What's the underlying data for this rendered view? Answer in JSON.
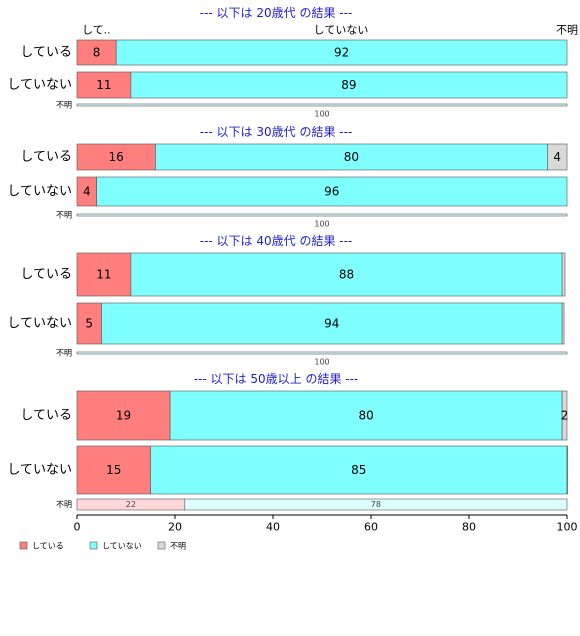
{
  "chart_data": {
    "type": "bar",
    "orientation": "horizontal",
    "stacked": "percent",
    "series_names": [
      "している",
      "していない",
      "不明"
    ],
    "colors": [
      "#ff7f7f",
      "#7fffff",
      "#d9d9d9"
    ],
    "small_colors": [
      "#ffd9d9",
      "#dcffff",
      "#eeeeee"
    ],
    "column_headers": [
      "して..",
      "していない",
      "不明"
    ],
    "xlim": [
      0,
      100
    ],
    "xticks": [
      0,
      20,
      40,
      60,
      80,
      100
    ],
    "legend_position": "bottom-left",
    "panels": [
      {
        "title": "--- 以下は 20歳代 の結果 ---",
        "rows": [
          {
            "label": "している",
            "values": [
              8,
              92,
              0
            ],
            "labels": [
              "8",
              "92",
              ""
            ]
          },
          {
            "label": "していない",
            "values": [
              11,
              89,
              0
            ],
            "labels": [
              "11",
              "89",
              ""
            ]
          },
          {
            "label": "不明",
            "values": [
              0,
              100,
              0
            ],
            "labels": [
              "",
              "100",
              ""
            ],
            "small": true
          }
        ]
      },
      {
        "title": "--- 以下は 30歳代 の結果 ---",
        "rows": [
          {
            "label": "している",
            "values": [
              16,
              80,
              4
            ],
            "labels": [
              "16",
              "80",
              "4"
            ]
          },
          {
            "label": "していない",
            "values": [
              4,
              96,
              0
            ],
            "labels": [
              "4",
              "96",
              ""
            ]
          },
          {
            "label": "不明",
            "values": [
              0,
              100,
              0
            ],
            "labels": [
              "",
              "100",
              ""
            ],
            "small": true
          }
        ]
      },
      {
        "title": "--- 以下は 40歳代 の結果 ---",
        "rows": [
          {
            "label": "している",
            "values": [
              11,
              88,
              0.6
            ],
            "labels": [
              "11",
              "88",
              ""
            ]
          },
          {
            "label": "していない",
            "values": [
              5,
              94,
              0.4
            ],
            "labels": [
              "5",
              "94",
              ""
            ]
          },
          {
            "label": "不明",
            "values": [
              0,
              100,
              0
            ],
            "labels": [
              "",
              "100",
              ""
            ],
            "small": true
          }
        ]
      },
      {
        "title": "--- 以下は 50歳以上 の結果 ---",
        "rows": [
          {
            "label": "している",
            "values": [
              19,
              80,
              2
            ],
            "labels": [
              "19",
              "80",
              "2"
            ]
          },
          {
            "label": "していない",
            "values": [
              15,
              85,
              0.4
            ],
            "labels": [
              "15",
              "85",
              ""
            ]
          },
          {
            "label": "不明",
            "values": [
              22,
              78,
              0
            ],
            "labels": [
              "22",
              "78",
              ""
            ],
            "small": true
          }
        ]
      }
    ]
  }
}
